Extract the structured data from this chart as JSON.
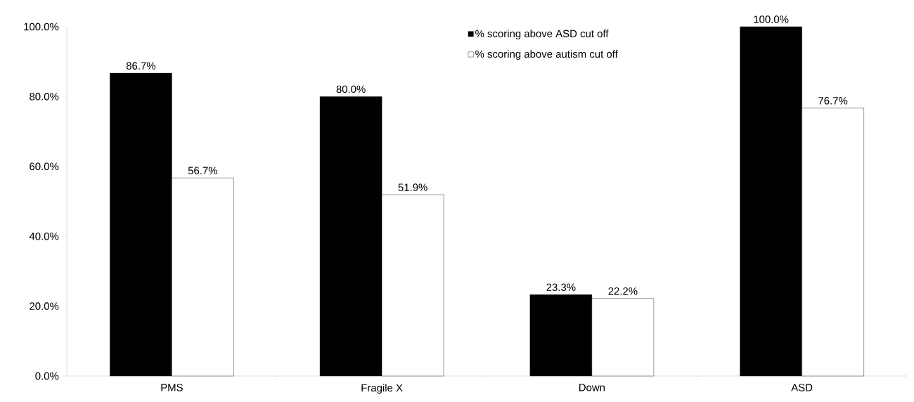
{
  "chart_data": {
    "type": "bar",
    "categories": [
      "PMS",
      "Fragile X",
      "Down",
      "ASD"
    ],
    "series": [
      {
        "name": "% scoring above ASD cut off",
        "color": "#000000",
        "values": [
          86.7,
          80.0,
          23.3,
          100.0
        ],
        "value_labels": [
          "86.7%",
          "80.0%",
          "23.3%",
          "100.0%"
        ]
      },
      {
        "name": "% scoring above autism cut off",
        "color": "#ffffff",
        "values": [
          56.7,
          51.9,
          22.2,
          76.7
        ],
        "value_labels": [
          "56.7%",
          "51.9%",
          "22.2%",
          "76.7%"
        ]
      }
    ],
    "ylim": [
      0,
      100
    ],
    "yticks": [
      {
        "value": 0,
        "label": "0.0%"
      },
      {
        "value": 20,
        "label": "20.0%"
      },
      {
        "value": 40,
        "label": "40.0%"
      },
      {
        "value": 60,
        "label": "60.0%"
      },
      {
        "value": 80,
        "label": "80.0%"
      },
      {
        "value": 100,
        "label": "100.0%"
      }
    ],
    "grid": false,
    "legend": "top"
  }
}
